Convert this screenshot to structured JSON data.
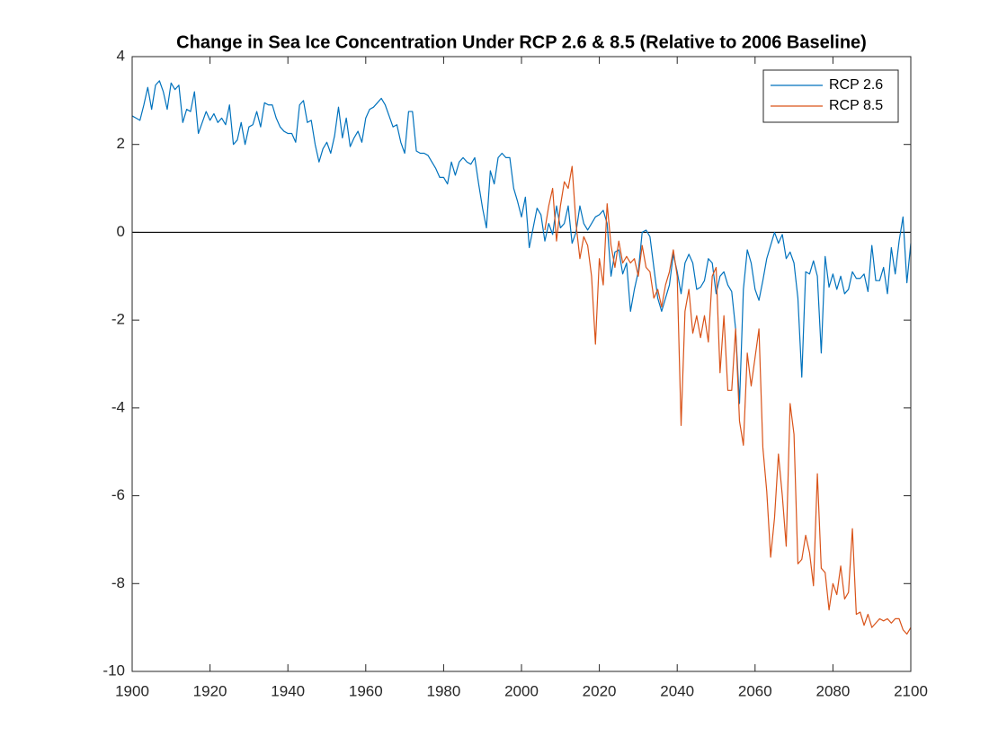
{
  "chart_data": {
    "type": "line",
    "title": "Change in Sea Ice Concentration Under RCP 2.6 & 8.5 (Relative to 2006 Baseline)",
    "x": [
      1900,
      1901,
      1902,
      1903,
      1904,
      1905,
      1906,
      1907,
      1908,
      1909,
      1910,
      1911,
      1912,
      1913,
      1914,
      1915,
      1916,
      1917,
      1918,
      1919,
      1920,
      1921,
      1922,
      1923,
      1924,
      1925,
      1926,
      1927,
      1928,
      1929,
      1930,
      1931,
      1932,
      1933,
      1934,
      1935,
      1936,
      1937,
      1938,
      1939,
      1940,
      1941,
      1942,
      1943,
      1944,
      1945,
      1946,
      1947,
      1948,
      1949,
      1950,
      1951,
      1952,
      1953,
      1954,
      1955,
      1956,
      1957,
      1958,
      1959,
      1960,
      1961,
      1962,
      1963,
      1964,
      1965,
      1966,
      1967,
      1968,
      1969,
      1970,
      1971,
      1972,
      1973,
      1974,
      1975,
      1976,
      1977,
      1978,
      1979,
      1980,
      1981,
      1982,
      1983,
      1984,
      1985,
      1986,
      1987,
      1988,
      1989,
      1990,
      1991,
      1992,
      1993,
      1994,
      1995,
      1996,
      1997,
      1998,
      1999,
      2000,
      2001,
      2002,
      2003,
      2004,
      2005,
      2006,
      2007,
      2008,
      2009,
      2010,
      2011,
      2012,
      2013,
      2014,
      2015,
      2016,
      2017,
      2018,
      2019,
      2020,
      2021,
      2022,
      2023,
      2024,
      2025,
      2026,
      2027,
      2028,
      2029,
      2030,
      2031,
      2032,
      2033,
      2034,
      2035,
      2036,
      2037,
      2038,
      2039,
      2040,
      2041,
      2042,
      2043,
      2044,
      2045,
      2046,
      2047,
      2048,
      2049,
      2050,
      2051,
      2052,
      2053,
      2054,
      2055,
      2056,
      2057,
      2058,
      2059,
      2060,
      2061,
      2062,
      2063,
      2064,
      2065,
      2066,
      2067,
      2068,
      2069,
      2070,
      2071,
      2072,
      2073,
      2074,
      2075,
      2076,
      2077,
      2078,
      2079,
      2080,
      2081,
      2082,
      2083,
      2084,
      2085,
      2086,
      2087,
      2088,
      2089,
      2090,
      2091,
      2092,
      2093,
      2094,
      2095,
      2096,
      2097,
      2098,
      2099,
      2100
    ],
    "series": [
      {
        "name": "RCP 2.6",
        "color": "#0072bd",
        "values": [
          2.65,
          2.6,
          2.55,
          2.9,
          3.3,
          2.8,
          3.35,
          3.45,
          3.2,
          2.8,
          3.4,
          3.25,
          3.35,
          2.5,
          2.8,
          2.75,
          3.2,
          2.25,
          2.5,
          2.75,
          2.55,
          2.7,
          2.5,
          2.6,
          2.45,
          2.9,
          2.0,
          2.1,
          2.5,
          2.0,
          2.4,
          2.45,
          2.75,
          2.4,
          2.95,
          2.9,
          2.9,
          2.6,
          2.4,
          2.3,
          2.25,
          2.25,
          2.05,
          2.9,
          3.0,
          2.5,
          2.55,
          2.0,
          1.6,
          1.9,
          2.05,
          1.8,
          2.2,
          2.85,
          2.15,
          2.6,
          1.95,
          2.15,
          2.3,
          2.05,
          2.6,
          2.8,
          2.85,
          2.95,
          3.05,
          2.9,
          2.65,
          2.4,
          2.45,
          2.05,
          1.8,
          2.75,
          2.75,
          1.85,
          1.8,
          1.8,
          1.75,
          1.6,
          1.45,
          1.25,
          1.25,
          1.1,
          1.6,
          1.3,
          1.6,
          1.7,
          1.6,
          1.55,
          1.7,
          1.1,
          0.55,
          0.1,
          1.4,
          1.1,
          1.7,
          1.8,
          1.7,
          1.7,
          1.0,
          0.7,
          0.35,
          0.8,
          -0.35,
          0.1,
          0.55,
          0.4,
          -0.2,
          0.2,
          -0.05,
          0.6,
          0.1,
          0.2,
          0.6,
          -0.25,
          0.0,
          0.6,
          0.2,
          0.05,
          0.2,
          0.35,
          0.4,
          0.5,
          0.2,
          -1.0,
          -0.45,
          -0.4,
          -0.95,
          -0.7,
          -1.8,
          -1.3,
          -0.9,
          0.0,
          0.05,
          -0.1,
          -0.8,
          -1.5,
          -1.8,
          -1.5,
          -1.2,
          -0.5,
          -0.9,
          -1.4,
          -0.7,
          -0.5,
          -0.7,
          -1.3,
          -1.25,
          -1.1,
          -0.6,
          -0.7,
          -1.4,
          -1.0,
          -0.9,
          -1.2,
          -1.35,
          -2.2,
          -3.9,
          -1.3,
          -0.4,
          -0.7,
          -1.3,
          -1.55,
          -1.1,
          -0.6,
          -0.3,
          0.0,
          -0.25,
          -0.05,
          -0.6,
          -0.45,
          -0.7,
          -1.5,
          -3.3,
          -0.9,
          -0.95,
          -0.65,
          -1.0,
          -2.75,
          -0.55,
          -1.25,
          -0.95,
          -1.3,
          -1.0,
          -1.4,
          -1.3,
          -0.9,
          -1.05,
          -1.05,
          -0.95,
          -1.35,
          -0.3,
          -1.1,
          -1.1,
          -0.8,
          -1.4,
          -0.35,
          -0.95,
          -0.2,
          0.35,
          -1.15,
          -0.25
        ]
      },
      {
        "name": "RCP 8.5",
        "color": "#d95319",
        "values": [
          null,
          null,
          null,
          null,
          null,
          null,
          null,
          null,
          null,
          null,
          null,
          null,
          null,
          null,
          null,
          null,
          null,
          null,
          null,
          null,
          null,
          null,
          null,
          null,
          null,
          null,
          null,
          null,
          null,
          null,
          null,
          null,
          null,
          null,
          null,
          null,
          null,
          null,
          null,
          null,
          null,
          null,
          null,
          null,
          null,
          null,
          null,
          null,
          null,
          null,
          null,
          null,
          null,
          null,
          null,
          null,
          null,
          null,
          null,
          null,
          null,
          null,
          null,
          null,
          null,
          null,
          null,
          null,
          null,
          null,
          null,
          null,
          null,
          null,
          null,
          null,
          null,
          null,
          null,
          null,
          null,
          null,
          null,
          null,
          null,
          null,
          null,
          null,
          null,
          null,
          null,
          null,
          null,
          null,
          null,
          null,
          null,
          null,
          null,
          null,
          null,
          null,
          null,
          null,
          null,
          null,
          0.05,
          0.6,
          1.0,
          -0.2,
          0.6,
          1.15,
          1.0,
          1.5,
          0.2,
          -0.6,
          -0.1,
          -0.3,
          -1.0,
          -2.55,
          -0.6,
          -1.2,
          0.65,
          -0.3,
          -0.8,
          -0.2,
          -0.7,
          -0.55,
          -0.7,
          -0.6,
          -1.0,
          -0.3,
          -0.8,
          -0.9,
          -1.5,
          -1.3,
          -1.7,
          -1.2,
          -0.9,
          -0.4,
          -1.0,
          -4.4,
          -1.8,
          -1.3,
          -2.3,
          -1.9,
          -2.4,
          -1.9,
          -2.5,
          -1.0,
          -0.8,
          -3.2,
          -1.9,
          -3.6,
          -3.6,
          -2.2,
          -4.3,
          -4.85,
          -2.75,
          -3.5,
          -2.85,
          -2.2,
          -4.9,
          -5.9,
          -7.4,
          -6.5,
          -5.05,
          -6.0,
          -7.15,
          -3.9,
          -4.6,
          -7.55,
          -7.45,
          -6.9,
          -7.3,
          -8.05,
          -5.5,
          -7.65,
          -7.75,
          -8.6,
          -8.0,
          -8.25,
          -7.6,
          -8.35,
          -8.2,
          -6.75,
          -8.7,
          -8.65,
          -8.95,
          -8.7,
          -9.0,
          -8.9,
          -8.8,
          -8.85,
          -8.8,
          -8.9,
          -8.8,
          -8.8,
          -9.05,
          -9.15,
          -9.0
        ]
      }
    ],
    "reference_line": 0,
    "xlim": [
      1900,
      2100
    ],
    "xticks": [
      1900,
      1920,
      1940,
      1960,
      1980,
      2000,
      2020,
      2040,
      2060,
      2080,
      2100
    ],
    "ylim": [
      -10,
      4
    ],
    "yticks": [
      -10,
      -8,
      -6,
      -4,
      -2,
      0,
      2,
      4
    ],
    "legend": "upper right",
    "grid": false
  }
}
